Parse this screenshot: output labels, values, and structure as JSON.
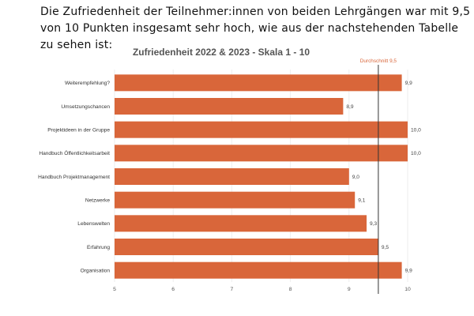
{
  "intro_text": "Die Zufriedenheit der Teilnehmer:innen von beiden Lehrgängen war mit 9,5 von 10 Punkten insgesamt sehr hoch, wie aus der nachstehenden Tabelle zu sehen ist:",
  "chart_data": {
    "type": "bar",
    "orientation": "horizontal",
    "title": "Zufriedenheit 2022 & 2023 - Skala 1 - 10",
    "categories": [
      "Weiterempfehlung?",
      "Umsetzungschancen",
      "Projektideen in der Gruppe",
      "Handbuch Öffentlichkeitsarbeit",
      "Handbuch Projektmanagement",
      "Netzwerke",
      "Lebenswelten",
      "Erfahrung",
      "Organisation"
    ],
    "values": [
      9.9,
      8.9,
      10.0,
      10.0,
      9.0,
      9.1,
      9.3,
      9.5,
      9.9
    ],
    "value_labels": [
      "9,9",
      "8,9",
      "10,0",
      "10,0",
      "9,0",
      "9,1",
      "9,3",
      "9,5",
      "9,9"
    ],
    "xlim": [
      5,
      10
    ],
    "xticks": [
      5,
      6,
      7,
      8,
      9,
      10
    ],
    "xtick_labels": [
      "5",
      "6",
      "7",
      "8",
      "9",
      "10"
    ],
    "reference_line": {
      "label": "Durchschnitt 9,5",
      "value": 9.5,
      "color": "#d9663a"
    },
    "bar_color": "#d9663a",
    "grid": true,
    "xlabel": "",
    "ylabel": ""
  }
}
